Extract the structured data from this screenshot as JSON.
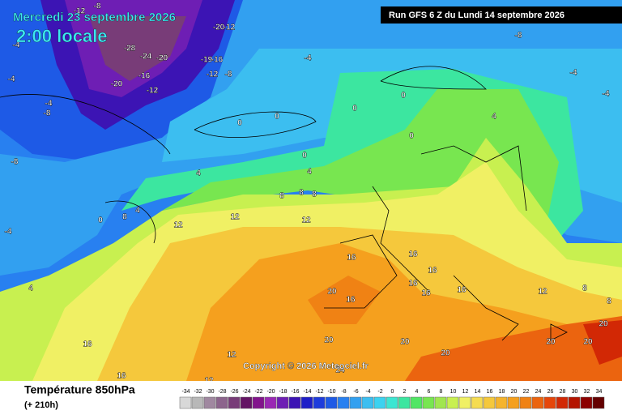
{
  "header": {
    "title": "Mercredi 23 septembre 2026",
    "time": "2:00 locale",
    "run": "Run GFS 6 Z du Lundi 14 septembre 2026"
  },
  "footer": {
    "field": "Température 850hPa",
    "lead": "(+ 210h)",
    "copyright": "Copyright © 2026 Meteociel.fr"
  },
  "contour_labels": [
    -12,
    -20,
    -12,
    -28,
    -24,
    -20,
    -19,
    -16,
    -12,
    -8,
    -20,
    -16,
    -12,
    -4,
    -4,
    -4,
    -8,
    -8,
    -8,
    -4,
    -4,
    -4,
    -4,
    -8,
    0,
    0,
    0,
    0,
    0,
    0,
    4,
    4,
    4,
    0,
    8,
    8,
    8,
    12,
    12,
    4,
    12,
    16,
    16,
    16,
    16,
    16,
    20,
    16,
    16,
    20,
    20,
    20,
    20,
    24,
    16,
    16,
    20,
    20,
    12,
    12,
    8,
    4,
    8,
    12,
    8
  ],
  "legend_scale": {
    "values": [
      -34,
      -32,
      -30,
      -28,
      -26,
      -24,
      -22,
      -20,
      -18,
      -16,
      -14,
      -12,
      -10,
      -8,
      -6,
      -4,
      -2,
      0,
      2,
      4,
      6,
      8,
      10,
      12,
      14,
      16,
      18,
      20,
      22,
      24,
      26,
      28,
      30,
      32,
      34
    ],
    "colors": [
      "#d8d8d8",
      "#b8b8b8",
      "#a088a0",
      "#8c648c",
      "#783c78",
      "#641464",
      "#82148c",
      "#9a28b4",
      "#6e1eb4",
      "#3c14b4",
      "#1e1ec8",
      "#1e3cdc",
      "#1e5ae6",
      "#2880f0",
      "#32a0f0",
      "#3cbef0",
      "#3cd2f0",
      "#3ce6d2",
      "#3ce6a0",
      "#50e664",
      "#78e650",
      "#a0e650",
      "#c8f050",
      "#f0f064",
      "#f5dc50",
      "#f5c83c",
      "#f5b42d",
      "#f5a01e",
      "#f08214",
      "#eb640f",
      "#e6460a",
      "#d22805",
      "#b41400",
      "#8c0000",
      "#640000"
    ]
  }
}
